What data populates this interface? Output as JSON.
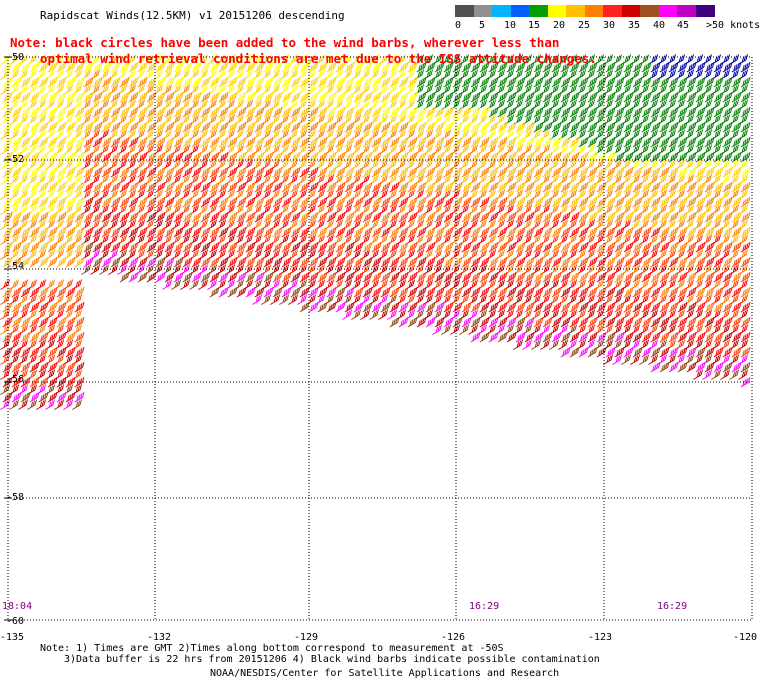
{
  "header": {
    "title": "Rapidscat Winds(12.5KM) v1 20151206 descending",
    "note_line1": "Note: black circles have been added to the wind barbs, wherever less than",
    "note_line2": "optimal wind retrieval conditions are met due to the ISS attitude changes."
  },
  "legend": {
    "labels": [
      "0",
      "5",
      "10",
      "15",
      "20",
      "25",
      "30",
      "35",
      "40",
      "45",
      ">50 knots"
    ],
    "colors": [
      "#505050",
      "#909090",
      "#00b4ff",
      "#0060ff",
      "#00a000",
      "#ffff00",
      "#ffc000",
      "#ff8000",
      "#ff2020",
      "#d00000",
      "#a05020",
      "#ff00ff",
      "#c000c0",
      "#400080"
    ]
  },
  "map": {
    "lat_labels": [
      "-50",
      "-52",
      "-54",
      "-56",
      "-58",
      "-60"
    ],
    "lon_labels": [
      "-135",
      "-132",
      "-129",
      "-126",
      "-123",
      "-120"
    ],
    "time_labels": [
      "18:04",
      "16:29",
      "16:29"
    ]
  },
  "footer": {
    "line1": "Note: 1) Times are GMT 2)Times along bottom correspond to measurement at -50S",
    "line2": "3)Data buffer is 22 hrs from 20151206 4) Black wind barbs indicate possible contamination",
    "line3": "NOAA/NESDIS/Center for Satellite Applications and Research"
  }
}
